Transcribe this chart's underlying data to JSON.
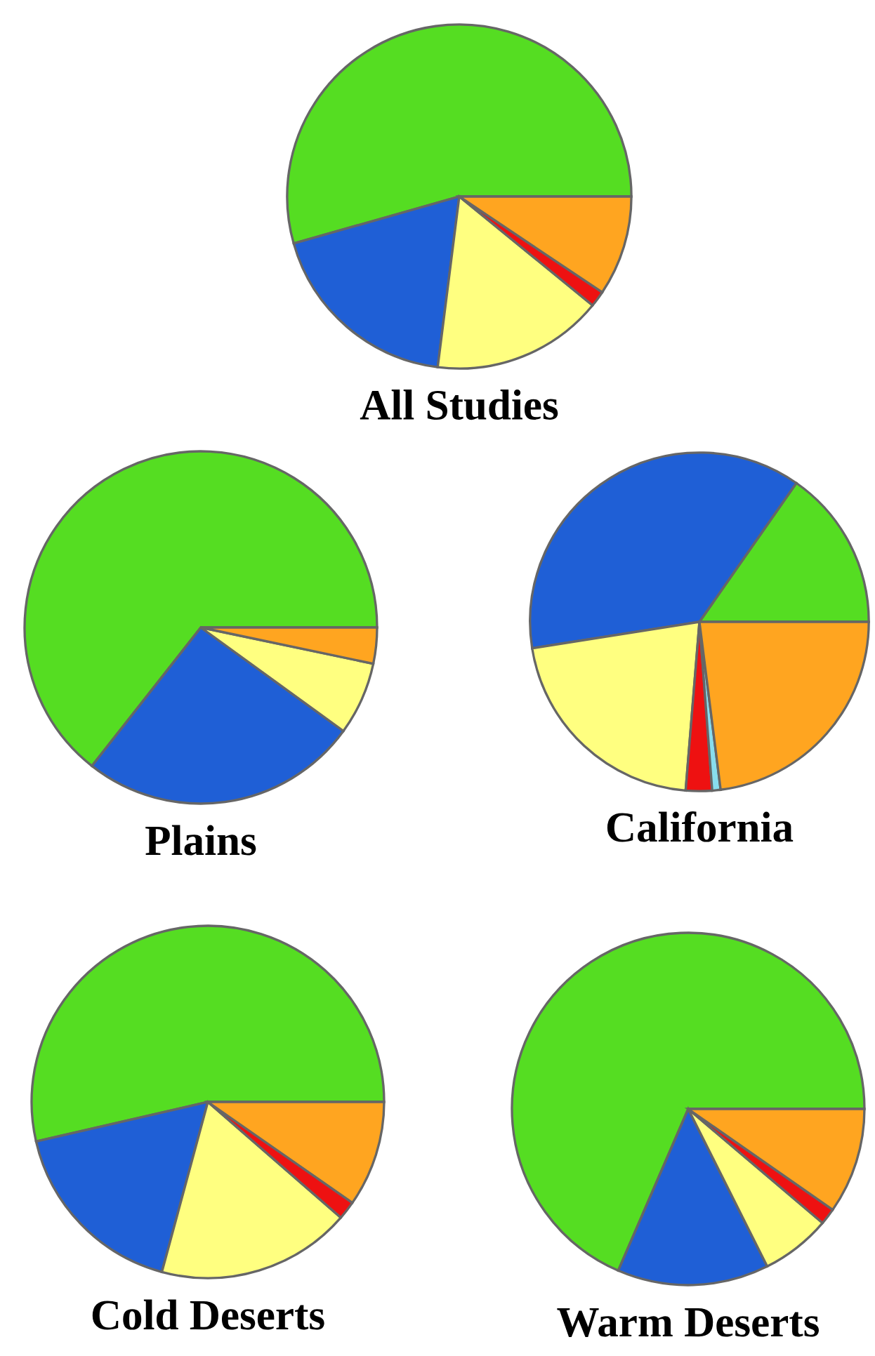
{
  "chart_data": [
    {
      "type": "pie",
      "title": "All Studies",
      "categories": [
        null,
        null,
        null,
        null,
        null
      ],
      "values": [
        54.4,
        18.6,
        16.1,
        1.5,
        9.4
      ],
      "colors": [
        "#55dd22",
        "#1f5fd6",
        "#ffff80",
        "#ee1111",
        "#ffa520"
      ]
    },
    {
      "type": "pie",
      "title": "Plains",
      "categories": [
        null,
        null,
        null,
        null
      ],
      "values": [
        64.4,
        25.6,
        6.7,
        3.3
      ],
      "colors": [
        "#55dd22",
        "#1f5fd6",
        "#ffff80",
        "#ffa520"
      ]
    },
    {
      "type": "pie",
      "title": "California",
      "categories": [
        null,
        null,
        null,
        null,
        null,
        null
      ],
      "values": [
        15.3,
        37.2,
        21.2,
        2.5,
        0.8,
        23.0
      ],
      "colors": [
        "#55dd22",
        "#1f5fd6",
        "#ffff80",
        "#ee1111",
        "#88ddee",
        "#ffa520"
      ]
    },
    {
      "type": "pie",
      "title": "Cold Deserts",
      "categories": [
        null,
        null,
        null,
        null,
        null
      ],
      "values": [
        53.6,
        17.2,
        17.8,
        1.7,
        9.7
      ],
      "colors": [
        "#55dd22",
        "#1f5fd6",
        "#ffff80",
        "#ee1111",
        "#ffa520"
      ]
    },
    {
      "type": "pie",
      "title": "Warm Deserts",
      "categories": [
        null,
        null,
        null,
        null,
        null
      ],
      "values": [
        68.5,
        13.9,
        6.4,
        1.5,
        9.7
      ],
      "colors": [
        "#55dd22",
        "#1f5fd6",
        "#ffff80",
        "#ee1111",
        "#ffa520"
      ]
    }
  ]
}
